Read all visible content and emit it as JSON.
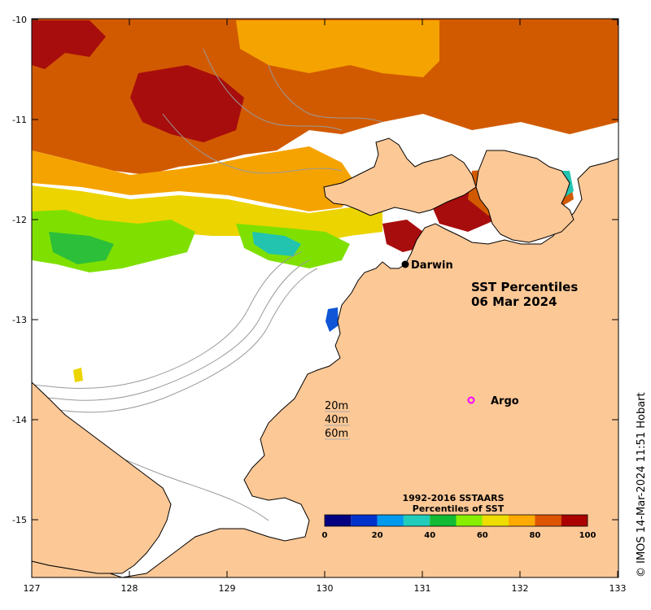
{
  "map": {
    "title_line1": "SST Percentiles",
    "title_line2": "06 Mar 2024",
    "lon_ticks": [
      "127",
      "128",
      "129",
      "130",
      "131",
      "132",
      "133"
    ],
    "lat_ticks": [
      "-10",
      "-11",
      "-12",
      "-13",
      "-14",
      "-15"
    ],
    "lon_range": [
      127,
      133
    ],
    "lat_range": [
      -10,
      -15.6
    ]
  },
  "places": {
    "darwin": "Darwin",
    "argo": "Argo"
  },
  "depth_legend": {
    "d20": "20m",
    "d40": "40m",
    "d60": "60m"
  },
  "colorbar": {
    "title_line1": "1992-2016 SSTAARS",
    "title_line2": "Percentiles of SST",
    "ticks": [
      "0",
      "20",
      "40",
      "60",
      "80",
      "100"
    ],
    "colors": [
      "#000080",
      "#0033cc",
      "#0099ee",
      "#22ccbb",
      "#11bb33",
      "#88ee00",
      "#eedd00",
      "#ffaa00",
      "#dd5500",
      "#aa0000"
    ]
  },
  "colors": {
    "land": "#fcc896",
    "darwin_marker": "#000000",
    "argo_marker": "#ff00ff"
  },
  "credit": "© IMOS 14-Mar-2024 11:51 Hobart"
}
